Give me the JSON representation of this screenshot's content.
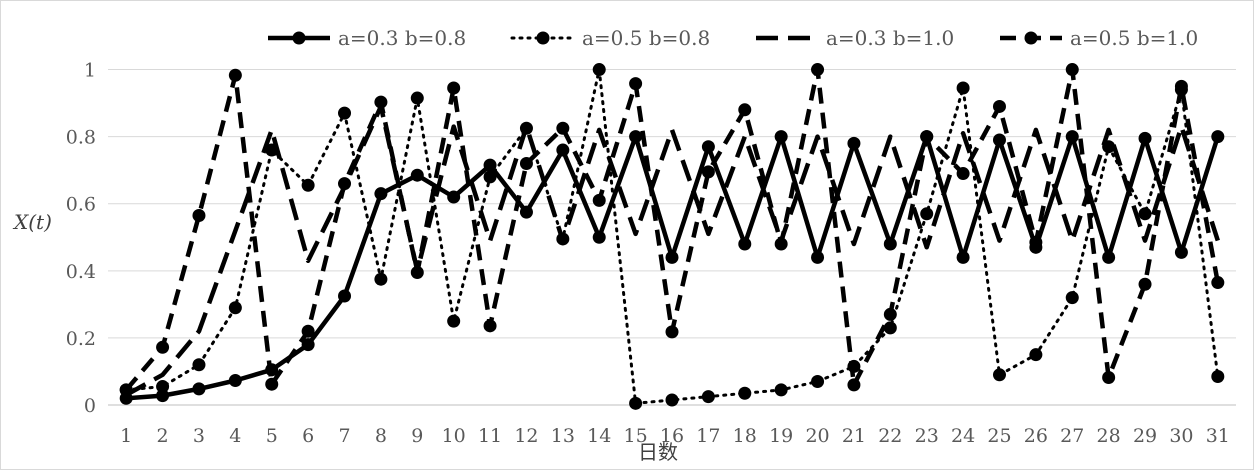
{
  "chart_data": {
    "type": "line",
    "title": "",
    "xlabel": "日数",
    "ylabel": "X(t)",
    "categories": [
      "1",
      "2",
      "3",
      "4",
      "5",
      "6",
      "7",
      "8",
      "9",
      "10",
      "11",
      "12",
      "13",
      "14",
      "15",
      "16",
      "17",
      "18",
      "19",
      "20",
      "21",
      "22",
      "23",
      "24",
      "25",
      "26",
      "27",
      "28",
      "29",
      "30",
      "31"
    ],
    "yticks": [
      "0",
      "0.2",
      "0.4",
      "0.6",
      "0.8",
      "1"
    ],
    "ylim": [
      0,
      1.1
    ],
    "grid": true,
    "legend_position": "top",
    "series": [
      {
        "name": "a=0.3 b=0.8",
        "style": "solid",
        "color": "#000000",
        "values": [
          0.02,
          0.028,
          0.048,
          0.073,
          0.105,
          0.18,
          0.325,
          0.63,
          0.685,
          0.62,
          0.715,
          0.575,
          0.76,
          0.5,
          0.8,
          0.44,
          0.77,
          0.48,
          0.8,
          0.44,
          0.78,
          0.48,
          0.8,
          0.44,
          0.79,
          0.47,
          0.8,
          0.44,
          0.795,
          0.455,
          0.8
        ]
      },
      {
        "name": "a=0.5 b=0.8",
        "style": "dotted",
        "color": "#000000",
        "values": [
          0.045,
          0.055,
          0.12,
          0.29,
          0.76,
          0.655,
          0.87,
          0.375,
          0.915,
          0.25,
          0.68,
          0.825,
          0.495,
          1.0,
          0.005,
          0.015,
          0.025,
          0.035,
          0.045,
          0.07,
          0.115,
          0.23,
          0.57,
          0.945,
          0.09,
          0.15,
          0.32,
          0.77,
          0.57,
          0.94,
          0.085
        ]
      },
      {
        "name": "a=0.3 b=1.0",
        "style": "dashed",
        "color": "#000000",
        "values": [
          0.03,
          0.09,
          0.22,
          0.52,
          0.82,
          0.43,
          0.65,
          0.89,
          0.4,
          0.83,
          0.49,
          0.83,
          0.49,
          0.82,
          0.51,
          0.82,
          0.51,
          0.8,
          0.49,
          0.8,
          0.48,
          0.8,
          0.47,
          0.81,
          0.49,
          0.82,
          0.49,
          0.82,
          0.49,
          0.83,
          0.49
        ]
      },
      {
        "name": "a=0.5 b=1.0",
        "style": "dashdot",
        "color": "#000000",
        "values": [
          0.045,
          0.172,
          0.565,
          0.983,
          0.062,
          0.22,
          0.66,
          0.903,
          0.395,
          0.945,
          0.236,
          0.72,
          0.825,
          0.61,
          0.958,
          0.218,
          0.695,
          0.88,
          0.48,
          1.0,
          0.06,
          0.27,
          0.8,
          0.69,
          0.89,
          0.485,
          1.0,
          0.082,
          0.36,
          0.95,
          0.365
        ]
      }
    ]
  }
}
